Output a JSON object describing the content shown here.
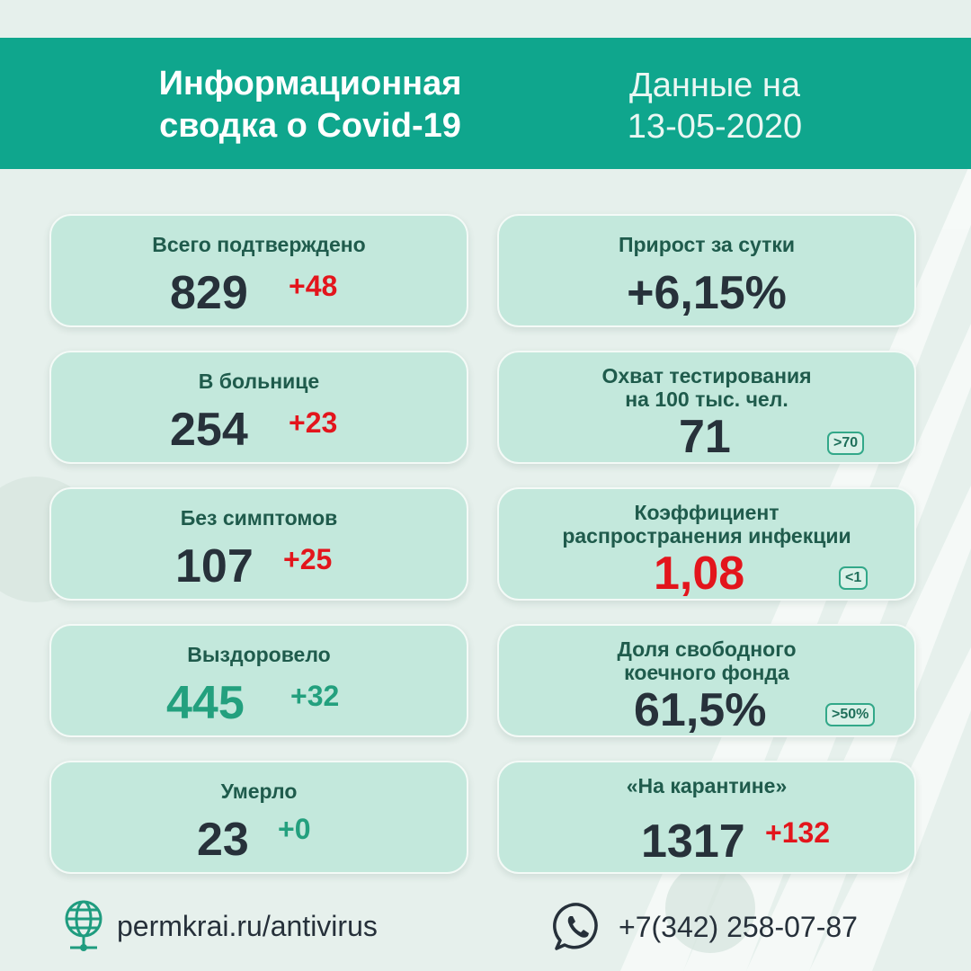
{
  "header": {
    "title_line1": "Информационная",
    "title_line2": "сводка о Covid-19",
    "date_line1": "Данные на",
    "date_line2": "13-05-2020"
  },
  "cards": {
    "confirmed": {
      "label": "Всего подтверждено",
      "value": "829",
      "delta": "+48"
    },
    "hospital": {
      "label": "В больнице",
      "value": "254",
      "delta": "+23"
    },
    "asymptomatic": {
      "label": "Без симптомов",
      "value": "107",
      "delta": "+25"
    },
    "recovered": {
      "label": "Выздоровело",
      "value": "445",
      "delta": "+32"
    },
    "died": {
      "label": "Умерло",
      "value": "23",
      "delta": "+0"
    },
    "growth": {
      "label": "Прирост за сутки",
      "value": "+6,15%"
    },
    "testing": {
      "label_line1": "Охват тестирования",
      "label_line2": "на 100 тыс. чел.",
      "value": "71",
      "badge": ">70"
    },
    "spread": {
      "label_line1": "Коэффициент",
      "label_line2": "распространения инфекции",
      "value": "1,08",
      "badge": "<1"
    },
    "beds": {
      "label_line1": "Доля свободного",
      "label_line2": "коечного фонда",
      "value": "61,5%",
      "badge": ">50%"
    },
    "quarantine": {
      "label": "«На карантине»",
      "value": "1317",
      "delta": "+132"
    }
  },
  "footer": {
    "website": "permkrai.ru/antivirus",
    "phone": "+7(342) 258-07-87"
  },
  "colors": {
    "header_bg": "#0fa68d",
    "card_bg": "#c3e8dc",
    "delta_red": "#e3151c",
    "delta_green": "#23a07e",
    "value_dark": "#27313a",
    "recovered_value": "#23a07e",
    "label_green": "#1f5b4c"
  },
  "icons": {
    "website": "globe-icon",
    "phone": "whatsapp-phone-icon"
  }
}
